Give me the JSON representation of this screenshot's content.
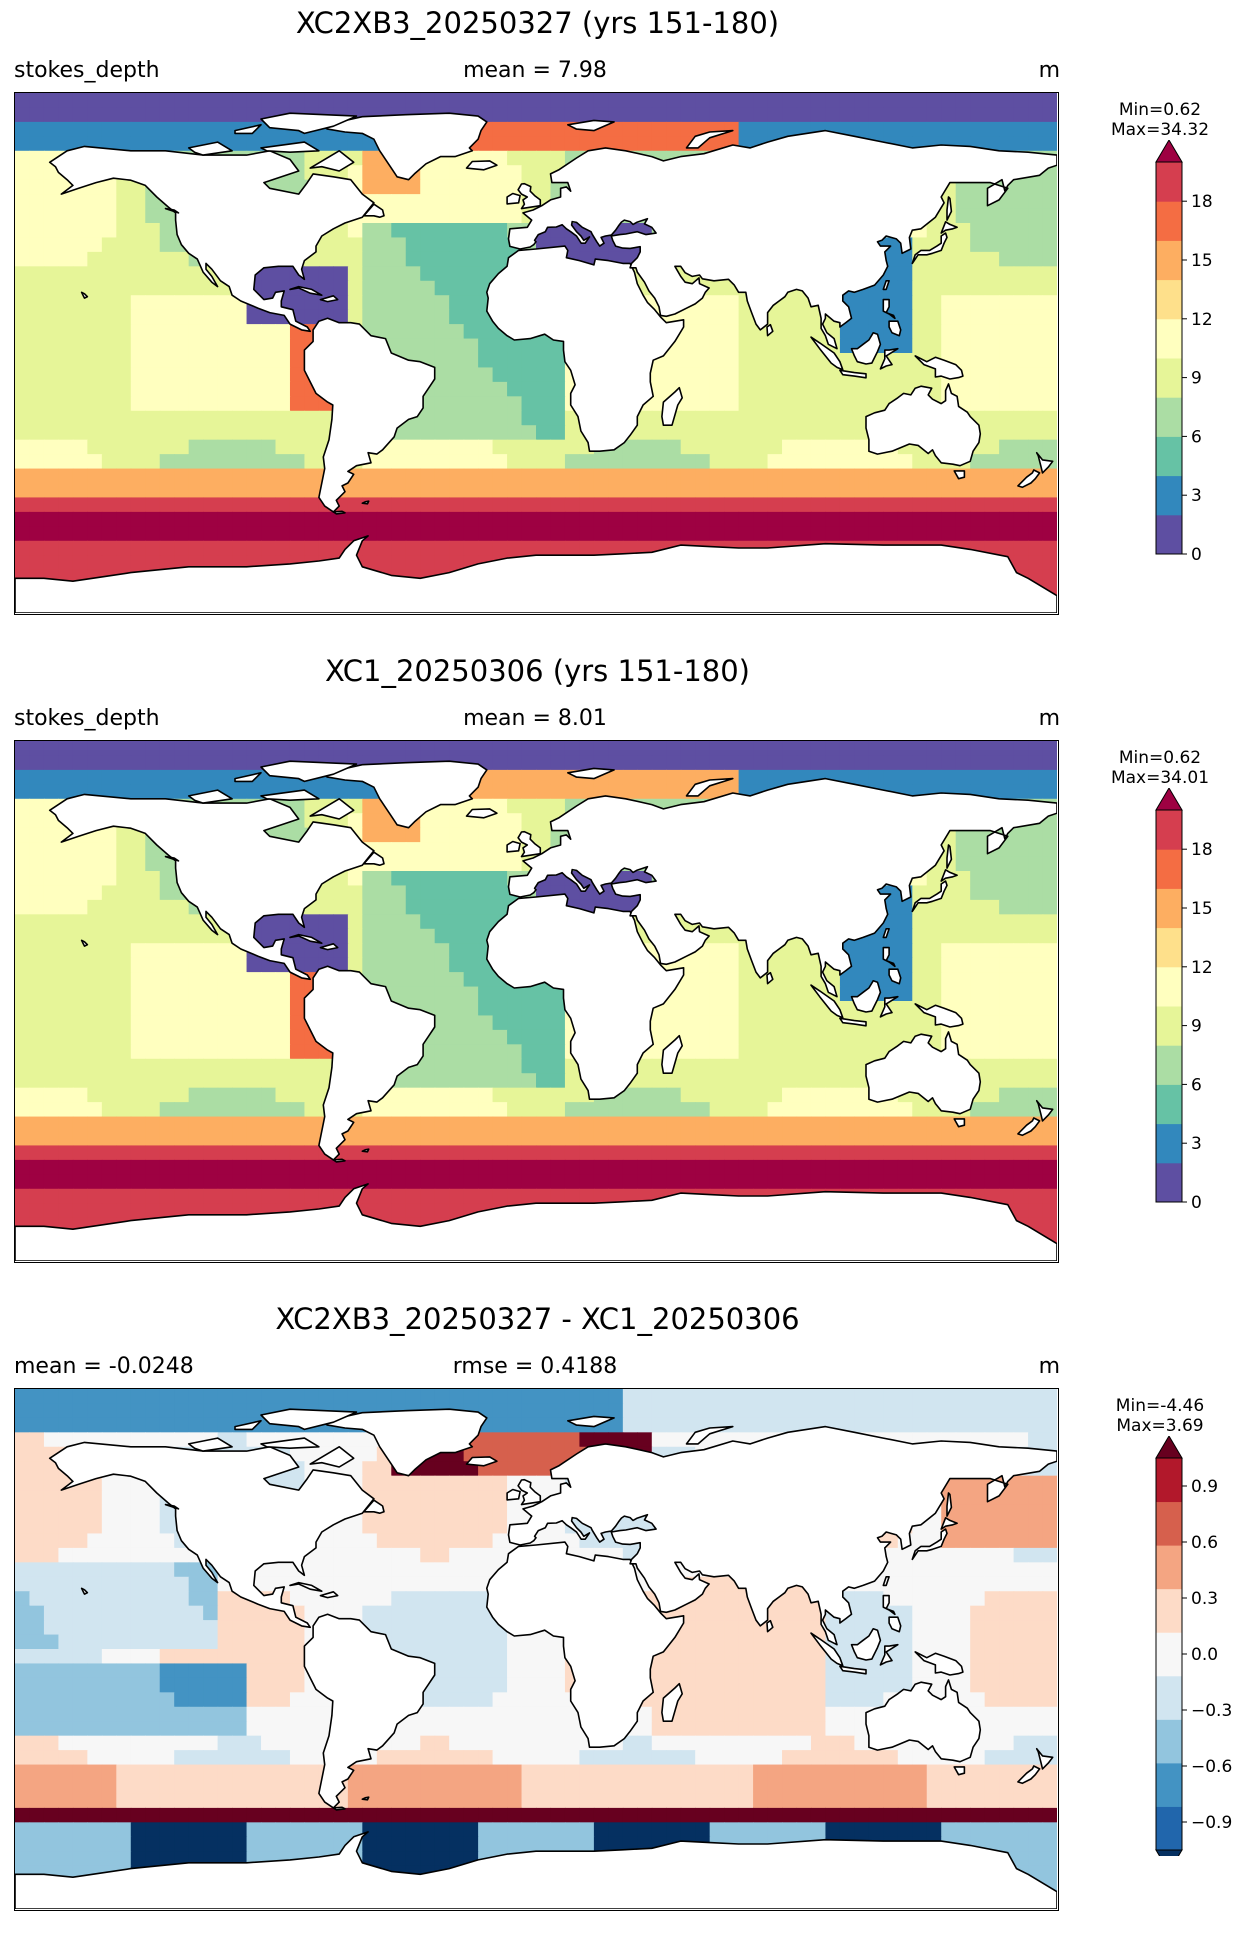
{
  "panels": [
    {
      "title": "XC2XB3_20250327 (yrs 151-180)",
      "left_label": "stokes_depth",
      "center_label": "mean = 7.98",
      "units": "m",
      "min_label": "Min=0.62",
      "max_label": "Max=34.32",
      "colorbar": {
        "colormap": "Spectral_r",
        "range": [
          0,
          20
        ],
        "extend": "max",
        "ticks": [
          "0",
          "3",
          "6",
          "9",
          "12",
          "15",
          "18"
        ],
        "tick_values": [
          0,
          3,
          6,
          9,
          12,
          15,
          18
        ],
        "colors": [
          "#5e4fa2",
          "#3288bd",
          "#66c2a5",
          "#abdda4",
          "#e6f598",
          "#ffffbf",
          "#fee08b",
          "#fdae61",
          "#f46d43",
          "#d53e4f",
          "#9e0142"
        ]
      }
    },
    {
      "title": "XC1_20250306 (yrs 151-180)",
      "left_label": "stokes_depth",
      "center_label": "mean = 8.01",
      "units": "m",
      "min_label": "Min=0.62",
      "max_label": "Max=34.01",
      "colorbar": {
        "colormap": "Spectral_r",
        "range": [
          0,
          20
        ],
        "extend": "max",
        "ticks": [
          "0",
          "3",
          "6",
          "9",
          "12",
          "15",
          "18"
        ],
        "tick_values": [
          0,
          3,
          6,
          9,
          12,
          15,
          18
        ],
        "colors": [
          "#5e4fa2",
          "#3288bd",
          "#66c2a5",
          "#abdda4",
          "#e6f598",
          "#ffffbf",
          "#fee08b",
          "#fdae61",
          "#f46d43",
          "#d53e4f",
          "#9e0142"
        ]
      }
    },
    {
      "title": "XC2XB3_20250327 - XC1_20250306",
      "left_label": "mean = -0.0248",
      "center_label": "rmse = 0.4188",
      "units": "m",
      "min_label": "Min=-4.46",
      "max_label": "Max=3.69",
      "colorbar": {
        "colormap": "RdBu_r",
        "range": [
          -1.05,
          1.05
        ],
        "extend": "both",
        "ticks": [
          "−0.9",
          "−0.6",
          "−0.3",
          "0.0",
          "0.3",
          "0.6",
          "0.9"
        ],
        "tick_values": [
          -0.9,
          -0.6,
          -0.3,
          0.0,
          0.3,
          0.6,
          0.9
        ],
        "colors": [
          "#053061",
          "#2166ac",
          "#4393c3",
          "#92c5de",
          "#d1e5f0",
          "#f7f7f7",
          "#fddbc7",
          "#f4a582",
          "#d6604d",
          "#b2182b",
          "#67001f"
        ]
      }
    }
  ],
  "chart_data": [
    {
      "type": "heatmap",
      "title": "XC2XB3_20250327 (yrs 151-180)",
      "variable": "stokes_depth",
      "units": "m",
      "mean": 7.98,
      "min": 0.62,
      "max": 34.32,
      "colorbar_range": [
        0,
        20
      ],
      "colorbar_ticks": [
        0,
        3,
        6,
        9,
        12,
        15,
        18
      ]
    },
    {
      "type": "heatmap",
      "title": "XC1_20250306 (yrs 151-180)",
      "variable": "stokes_depth",
      "units": "m",
      "mean": 8.01,
      "min": 0.62,
      "max": 34.01,
      "colorbar_range": [
        0,
        20
      ],
      "colorbar_ticks": [
        0,
        3,
        6,
        9,
        12,
        15,
        18
      ]
    },
    {
      "type": "heatmap",
      "title": "XC2XB3_20250327 - XC1_20250306",
      "units": "m",
      "mean": -0.0248,
      "rmse": 0.4188,
      "min": -4.46,
      "max": 3.69,
      "colorbar_range": [
        -1.05,
        1.05
      ],
      "colorbar_ticks": [
        -0.9,
        -0.6,
        -0.3,
        0.0,
        0.3,
        0.6,
        0.9
      ]
    }
  ]
}
